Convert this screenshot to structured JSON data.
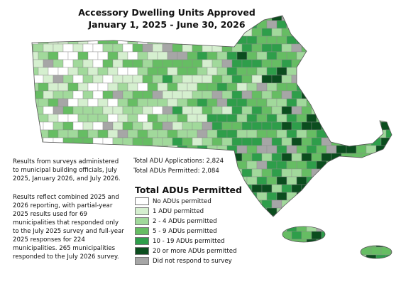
{
  "header": {
    "title": "Accessory Dwelling Units Approved",
    "subtitle": "January 1, 2025 - June 30, 2026"
  },
  "notes": [
    "Results from surveys administered to municipal building officials, July 2025, January 2026, and July 2026.",
    "Results reflect combined 2025 and 2026 reporting, with partial-year 2025 results used for 69 municipalities that responded only to the July 2025 survey and full-year 2025 responses for 224 municipalities. 265 municipalities responded to the July 2026 survey."
  ],
  "totals": [
    "Total ADU Applications: 2,824",
    "Total ADUs Permitted: 2,084"
  ],
  "legend": {
    "title": "Total ADUs Permitted",
    "items": [
      {
        "label": "No ADUs permitted",
        "color": "#ffffff"
      },
      {
        "label": "1 ADU permitted",
        "color": "#d5efcf"
      },
      {
        "label": "2 - 4 ADUs permitted",
        "color": "#a1d99b"
      },
      {
        "label": "5 - 9 ADUs permitted",
        "color": "#66bd63"
      },
      {
        "label": "10 - 19 ADUs permitted",
        "color": "#2e9e4a"
      },
      {
        "label": "20 or more ADUs permitted",
        "color": "#0b4d1e"
      },
      {
        "label": "Did not respond to survey",
        "color": "#a6a6a6"
      }
    ]
  }
}
